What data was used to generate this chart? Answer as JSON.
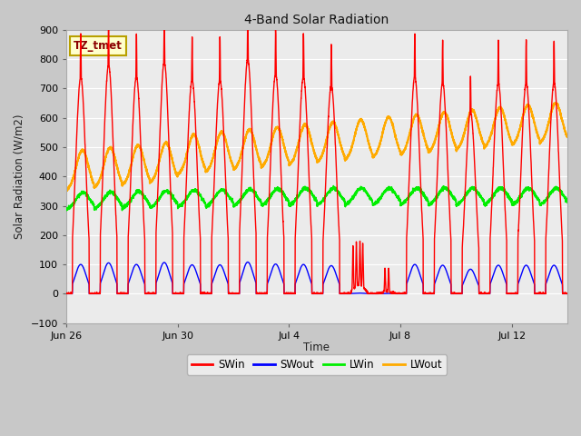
{
  "title": "4-Band Solar Radiation",
  "xlabel": "Time",
  "ylabel": "Solar Radiation (W/m2)",
  "ylim": [
    -100,
    900
  ],
  "yticks": [
    -100,
    0,
    100,
    200,
    300,
    400,
    500,
    600,
    700,
    800,
    900
  ],
  "bg_color": "#ebebeb",
  "grid_color": "#ffffff",
  "fig_bg_color": "#c8c8c8",
  "annotation_text": "TZ_tmet",
  "annotation_color": "#8B0000",
  "annotation_bg": "#ffffcc",
  "annotation_edge": "#b8a000",
  "series": {
    "SWin": {
      "color": "#ff0000",
      "lw": 1.0
    },
    "SWout": {
      "color": "#0000ff",
      "lw": 1.0
    },
    "LWin": {
      "color": "#00ee00",
      "lw": 1.2
    },
    "LWout": {
      "color": "#ffaa00",
      "lw": 1.5
    }
  },
  "num_days": 18,
  "points_per_day": 288,
  "xtick_labels": [
    "Jun 26",
    "Jun 30",
    "Jul 4",
    "Jul 8",
    "Jul 12"
  ],
  "xtick_positions": [
    0,
    4,
    8,
    12,
    16
  ],
  "SW_peaks": [
    740,
    780,
    740,
    790,
    730,
    730,
    800,
    750,
    740,
    710,
    160,
    80,
    740,
    720,
    620,
    720,
    720,
    720
  ],
  "LWout_night": 370,
  "LWout_day_add": 140,
  "LWin_base": 285,
  "LWin_bump": 60
}
